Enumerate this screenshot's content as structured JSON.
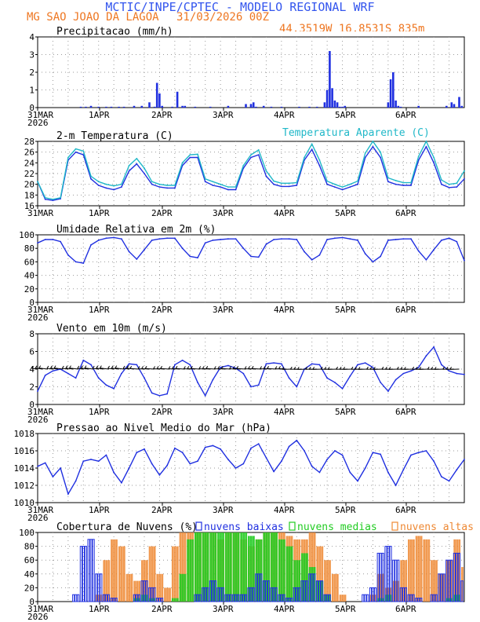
{
  "header": {
    "title": "MCTIC/INPE/CPTEC - MODELO REGIONAL WRF",
    "station": "MG SAO JOAO DA LAGOA",
    "run": "31/03/2026 00Z",
    "coords": "44.3519W 16.8531S 835m"
  },
  "colors": {
    "title": "#3355ee",
    "station": "#ee7722",
    "series_blue": "#2030e0",
    "series_cyan": "#20b8c8",
    "cloud_low": "#2030e0",
    "cloud_mid": "#22cc22",
    "cloud_high": "#ee8833",
    "grid": "#999999"
  },
  "chart_data": [
    {
      "id": "precip",
      "type": "bar",
      "title": "Precipitacao (mm/h)",
      "ylim": [
        0,
        4
      ],
      "yticks": [
        "0",
        "1",
        "2",
        "3",
        "4"
      ],
      "xtick_labels": [
        "31MAR",
        "1APR",
        "2APR",
        "3APR",
        "4APR",
        "5APR",
        "6APR"
      ],
      "year_label": "2026",
      "x_hours": [
        17,
        19,
        21,
        24,
        27,
        29,
        32,
        34,
        38,
        41,
        44,
        46,
        47,
        48,
        49,
        53,
        55,
        57,
        58,
        62,
        68,
        75,
        82,
        84,
        85,
        86,
        89,
        92,
        96,
        103,
        107,
        110,
        113,
        114,
        115,
        116,
        117,
        118,
        119,
        120,
        121,
        138,
        139,
        140,
        141,
        142,
        143,
        150,
        161,
        163,
        164,
        166,
        167
      ],
      "values": [
        0.05,
        0.05,
        0.1,
        0.05,
        0.05,
        0.05,
        0.05,
        0.05,
        0.1,
        0.1,
        0.3,
        0.05,
        1.4,
        0.8,
        0.1,
        0.05,
        0.9,
        0.1,
        0.1,
        0.05,
        0.05,
        0.1,
        0.2,
        0.2,
        0.3,
        0.05,
        0.1,
        0.05,
        0.05,
        0.05,
        0.05,
        0.05,
        0.3,
        1.0,
        3.2,
        1.1,
        0.4,
        0.3,
        0.05,
        0.05,
        0.1,
        0.3,
        1.6,
        2.0,
        0.4,
        0.1,
        0.05,
        0.1,
        0.1,
        0.3,
        0.2,
        0.6,
        0.1
      ]
    },
    {
      "id": "temperature",
      "type": "line",
      "title": "2-m Temperatura (C)",
      "ylim": [
        16,
        28
      ],
      "yticks": [
        "16",
        "18",
        "20",
        "22",
        "24",
        "26",
        "28"
      ],
      "xtick_labels": [
        "31MAR",
        "1APR",
        "2APR",
        "3APR",
        "4APR",
        "5APR",
        "6APR"
      ],
      "legend_right": "Temperatura Aparente (C)",
      "series": [
        {
          "name": "Temperatura",
          "color": "blue",
          "x": [
            0,
            3,
            6,
            9,
            12,
            15,
            18,
            21,
            24,
            27,
            30,
            33,
            36,
            39,
            42,
            45,
            48,
            51,
            54,
            57,
            60,
            63,
            66,
            69,
            72,
            75,
            78,
            81,
            84,
            87,
            90,
            93,
            96,
            99,
            102,
            105,
            108,
            111,
            114,
            117,
            120,
            123,
            126,
            129,
            132,
            135,
            138,
            141,
            144,
            147,
            150,
            153,
            156,
            159,
            162,
            165,
            168
          ],
          "values": [
            20.5,
            17.2,
            17.0,
            17.3,
            24.5,
            26.0,
            25.5,
            21.0,
            19.8,
            19.3,
            19.0,
            19.5,
            22.5,
            23.8,
            22.0,
            20.0,
            19.5,
            19.3,
            19.3,
            23.5,
            25.0,
            25.0,
            20.5,
            19.8,
            19.5,
            19.0,
            19.0,
            23.0,
            25.0,
            25.5,
            21.5,
            20.0,
            19.6,
            19.6,
            19.8,
            24.5,
            26.5,
            23.5,
            20.0,
            19.5,
            19.0,
            19.5,
            20.0,
            25.0,
            27.0,
            25.0,
            20.5,
            20.0,
            19.8,
            19.8,
            24.5,
            27.0,
            24.0,
            20.0,
            19.4,
            19.5,
            21.0
          ]
        },
        {
          "name": "Temperatura Aparente",
          "color": "cyan",
          "x": [
            0,
            3,
            6,
            9,
            12,
            15,
            18,
            21,
            24,
            27,
            30,
            33,
            36,
            39,
            42,
            45,
            48,
            51,
            54,
            57,
            60,
            63,
            66,
            69,
            72,
            75,
            78,
            81,
            84,
            87,
            90,
            93,
            96,
            99,
            102,
            105,
            108,
            111,
            114,
            117,
            120,
            123,
            126,
            129,
            132,
            135,
            138,
            141,
            144,
            147,
            150,
            153,
            156,
            159,
            162,
            165,
            168
          ],
          "values": [
            20.5,
            17.5,
            17.2,
            17.5,
            25.0,
            26.6,
            26.2,
            21.5,
            20.5,
            20.0,
            19.7,
            20.0,
            23.5,
            24.8,
            23.0,
            20.5,
            20.0,
            19.8,
            19.8,
            24.0,
            25.5,
            25.6,
            21.0,
            20.5,
            20.0,
            19.5,
            19.5,
            23.5,
            25.5,
            26.4,
            22.5,
            20.6,
            20.2,
            20.2,
            20.3,
            25.0,
            27.5,
            24.5,
            20.6,
            20.0,
            19.5,
            20.0,
            20.6,
            25.8,
            28.0,
            26.0,
            21.2,
            20.7,
            20.3,
            20.3,
            25.2,
            28.0,
            25.0,
            20.8,
            20.0,
            20.2,
            22.5
          ]
        }
      ]
    },
    {
      "id": "humidity",
      "type": "line",
      "title": "Umidade Relativa em 2m (%)",
      "ylim": [
        0,
        100
      ],
      "yticks": [
        "0",
        "20",
        "40",
        "60",
        "80",
        "100"
      ],
      "xtick_labels": [
        "31MAR",
        "1APR",
        "2APR",
        "3APR",
        "4APR",
        "5APR",
        "6APR"
      ],
      "year_label": "2026",
      "x": [
        0,
        3,
        6,
        9,
        12,
        15,
        18,
        21,
        24,
        27,
        30,
        33,
        36,
        39,
        42,
        45,
        48,
        51,
        54,
        57,
        60,
        63,
        66,
        69,
        72,
        75,
        78,
        81,
        84,
        87,
        90,
        93,
        96,
        99,
        102,
        105,
        108,
        111,
        114,
        117,
        120,
        123,
        126,
        129,
        132,
        135,
        138,
        141,
        144,
        147,
        150,
        153,
        156,
        159,
        162,
        165,
        168
      ],
      "values": [
        88,
        93,
        93,
        90,
        70,
        60,
        58,
        85,
        92,
        95,
        96,
        94,
        75,
        64,
        78,
        92,
        94,
        95,
        95,
        80,
        68,
        66,
        88,
        92,
        93,
        94,
        94,
        80,
        68,
        67,
        86,
        93,
        94,
        94,
        93,
        75,
        63,
        70,
        93,
        95,
        96,
        94,
        92,
        72,
        60,
        68,
        92,
        93,
        94,
        94,
        76,
        63,
        78,
        92,
        95,
        90,
        62
      ]
    },
    {
      "id": "wind",
      "type": "line",
      "title": "Vento em 10m (m/s)",
      "ylim": [
        0,
        8
      ],
      "yticks": [
        "0",
        "2",
        "4",
        "6",
        "8"
      ],
      "xtick_labels": [
        "31MAR",
        "1APR",
        "2APR",
        "3APR",
        "4APR",
        "5APR",
        "6APR"
      ],
      "year_label": "2026",
      "x": [
        0,
        3,
        6,
        9,
        12,
        15,
        18,
        21,
        24,
        27,
        30,
        33,
        36,
        39,
        42,
        45,
        48,
        51,
        54,
        57,
        60,
        63,
        66,
        69,
        72,
        75,
        78,
        81,
        84,
        87,
        90,
        93,
        96,
        99,
        102,
        105,
        108,
        111,
        114,
        117,
        120,
        123,
        126,
        129,
        132,
        135,
        138,
        141,
        144,
        147,
        150,
        153,
        156,
        159,
        162,
        165,
        168
      ],
      "values": [
        1.5,
        3.3,
        3.8,
        4.0,
        3.5,
        3.0,
        5.0,
        4.5,
        3.0,
        2.2,
        1.8,
        3.5,
        4.6,
        4.5,
        3.0,
        1.3,
        1.0,
        1.2,
        4.5,
        5.0,
        4.5,
        2.5,
        1.0,
        2.8,
        4.2,
        4.4,
        4.1,
        3.5,
        2.0,
        2.2,
        4.6,
        4.7,
        4.6,
        3.0,
        2.0,
        4.0,
        4.6,
        4.5,
        3.0,
        2.5,
        1.8,
        3.2,
        4.5,
        4.7,
        4.2,
        2.5,
        1.5,
        2.8,
        3.5,
        3.8,
        4.2,
        5.5,
        6.5,
        4.5,
        3.8,
        3.5,
        3.4
      ],
      "barbs_note": "wind direction arrows along ~4 m/s line"
    },
    {
      "id": "pressure",
      "type": "line",
      "title": "Pressao ao Nivel Medio do Mar (hPa)",
      "ylim": [
        1010,
        1018
      ],
      "yticks": [
        "1010",
        "1012",
        "1014",
        "1016",
        "1018"
      ],
      "xtick_labels": [
        "31MAR",
        "1APR",
        "2APR",
        "3APR",
        "4APR",
        "5APR",
        "6APR"
      ],
      "year_label": "2026",
      "x": [
        0,
        3,
        6,
        9,
        12,
        15,
        18,
        21,
        24,
        27,
        30,
        33,
        36,
        39,
        42,
        45,
        48,
        51,
        54,
        57,
        60,
        63,
        66,
        69,
        72,
        75,
        78,
        81,
        84,
        87,
        90,
        93,
        96,
        99,
        102,
        105,
        108,
        111,
        114,
        117,
        120,
        123,
        126,
        129,
        132,
        135,
        138,
        141,
        144,
        147,
        150,
        153,
        156,
        159,
        162,
        165,
        168
      ],
      "values": [
        1014.2,
        1014.6,
        1013.0,
        1014.0,
        1011.0,
        1012.5,
        1014.8,
        1015.0,
        1014.8,
        1015.5,
        1013.5,
        1012.3,
        1014.0,
        1015.8,
        1016.2,
        1014.5,
        1013.2,
        1014.3,
        1016.3,
        1015.8,
        1014.5,
        1014.8,
        1016.4,
        1016.6,
        1016.2,
        1015.0,
        1014.0,
        1014.5,
        1016.3,
        1016.8,
        1015.2,
        1013.6,
        1014.8,
        1016.5,
        1017.2,
        1016.0,
        1014.2,
        1013.5,
        1015.0,
        1016.0,
        1015.5,
        1013.5,
        1012.5,
        1014.0,
        1015.8,
        1015.6,
        1013.5,
        1012.0,
        1013.8,
        1015.5,
        1015.8,
        1016.0,
        1014.8,
        1013.0,
        1012.5,
        1013.8,
        1015.0
      ]
    },
    {
      "id": "clouds",
      "type": "bar",
      "title": "Cobertura de Nuvens (%)",
      "ylim": [
        0,
        100
      ],
      "yticks": [
        "0",
        "20",
        "40",
        "60",
        "80",
        "100"
      ],
      "xtick_labels": [
        "31MAR",
        "1APR",
        "2APR",
        "3APR",
        "4APR",
        "5APR",
        "6APR"
      ],
      "year_label": "2026",
      "legend": [
        "nuvens baixas",
        "nuvens medias",
        "nuvens altas"
      ],
      "x": [
        0,
        3,
        6,
        9,
        12,
        15,
        18,
        21,
        24,
        27,
        30,
        33,
        36,
        39,
        42,
        45,
        48,
        51,
        54,
        57,
        60,
        63,
        66,
        69,
        72,
        75,
        78,
        81,
        84,
        87,
        90,
        93,
        96,
        99,
        102,
        105,
        108,
        111,
        114,
        117,
        120,
        123,
        126,
        129,
        132,
        135,
        138,
        141,
        144,
        147,
        150,
        153,
        156,
        159,
        162,
        165,
        168
      ],
      "series": [
        {
          "name": "nuvens baixas",
          "values": [
            0,
            0,
            0,
            0,
            0,
            10,
            80,
            90,
            40,
            10,
            5,
            0,
            0,
            10,
            30,
            20,
            5,
            0,
            0,
            0,
            0,
            10,
            20,
            30,
            20,
            10,
            10,
            10,
            20,
            40,
            30,
            20,
            10,
            5,
            20,
            30,
            40,
            30,
            10,
            0,
            0,
            0,
            0,
            10,
            20,
            70,
            80,
            60,
            20,
            10,
            5,
            0,
            10,
            40,
            60,
            70,
            30
          ]
        },
        {
          "name": "nuvens medias",
          "values": [
            0,
            0,
            0,
            0,
            0,
            0,
            0,
            0,
            0,
            0,
            0,
            0,
            0,
            5,
            10,
            5,
            0,
            0,
            5,
            40,
            90,
            100,
            100,
            100,
            100,
            100,
            100,
            100,
            95,
            90,
            100,
            100,
            90,
            80,
            60,
            70,
            50,
            30,
            10,
            0,
            0,
            0,
            0,
            0,
            0,
            5,
            10,
            0,
            0,
            0,
            0,
            0,
            0,
            0,
            5,
            10,
            0
          ]
        },
        {
          "name": "nuvens altas",
          "values": [
            0,
            0,
            0,
            0,
            0,
            0,
            0,
            0,
            10,
            60,
            90,
            80,
            40,
            30,
            60,
            80,
            40,
            20,
            80,
            100,
            100,
            100,
            100,
            100,
            90,
            100,
            100,
            90,
            80,
            90,
            100,
            100,
            100,
            95,
            90,
            90,
            100,
            80,
            60,
            40,
            10,
            0,
            0,
            0,
            10,
            40,
            20,
            30,
            60,
            90,
            95,
            90,
            60,
            40,
            60,
            90,
            50
          ]
        }
      ]
    }
  ]
}
